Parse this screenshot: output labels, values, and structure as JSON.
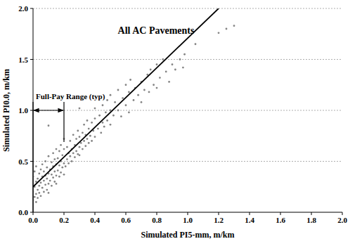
{
  "chart_data": {
    "type": "scatter",
    "title": "All AC Pavements",
    "x_label": "Simulated PI5-mm, m/km",
    "y_label": "Simulated PI0.0, m/km",
    "xlim": [
      0,
      2
    ],
    "ylim": [
      0,
      2
    ],
    "xticks": [
      {
        "value": 0,
        "label": "0.0"
      },
      {
        "value": 0.2,
        "label": "0.2"
      },
      {
        "value": 0.4,
        "label": "0.4"
      },
      {
        "value": 0.6,
        "label": "0.6"
      },
      {
        "value": 0.8,
        "label": "0.8"
      },
      {
        "value": 1,
        "label": "1.0"
      },
      {
        "value": 1.2,
        "label": "1.2"
      },
      {
        "value": 1.4,
        "label": "1.4"
      },
      {
        "value": 1.6,
        "label": "1.6"
      },
      {
        "value": 1.8,
        "label": "1.8"
      },
      {
        "value": 2,
        "label": "2.0"
      }
    ],
    "yticks": [
      {
        "value": 0,
        "label": "0.0"
      },
      {
        "value": 0.5,
        "label": "0.5"
      },
      {
        "value": 1,
        "label": "1.0"
      },
      {
        "value": 1.5,
        "label": "1.5"
      },
      {
        "value": 2,
        "label": "2.0"
      }
    ],
    "grid": true,
    "annotations": [
      {
        "text": "Full-Pay Range (typ)",
        "x": [
          0,
          0.2
        ],
        "y": 1.0
      }
    ],
    "series": [
      {
        "type": "scatter",
        "color": "#858585",
        "marker": "circle",
        "x": [
          0.0,
          0.0,
          0.0,
          0.0,
          0.01,
          0.01,
          0.01,
          0.02,
          0.02,
          0.02,
          0.02,
          0.03,
          0.03,
          0.03,
          0.04,
          0.04,
          0.04,
          0.05,
          0.05,
          0.05,
          0.06,
          0.06,
          0.06,
          0.07,
          0.07,
          0.07,
          0.08,
          0.08,
          0.08,
          0.09,
          0.09,
          0.09,
          0.1,
          0.1,
          0.1,
          0.1,
          0.11,
          0.11,
          0.12,
          0.12,
          0.12,
          0.13,
          0.13,
          0.13,
          0.14,
          0.14,
          0.14,
          0.15,
          0.15,
          0.15,
          0.15,
          0.16,
          0.16,
          0.17,
          0.17,
          0.17,
          0.18,
          0.18,
          0.18,
          0.19,
          0.19,
          0.2,
          0.2,
          0.2,
          0.2,
          0.21,
          0.22,
          0.22,
          0.23,
          0.23,
          0.24,
          0.24,
          0.25,
          0.25,
          0.26,
          0.26,
          0.27,
          0.27,
          0.28,
          0.28,
          0.29,
          0.29,
          0.3,
          0.3,
          0.3,
          0.31,
          0.32,
          0.32,
          0.33,
          0.33,
          0.34,
          0.34,
          0.35,
          0.35,
          0.36,
          0.36,
          0.37,
          0.38,
          0.38,
          0.39,
          0.4,
          0.4,
          0.4,
          0.42,
          0.43,
          0.44,
          0.45,
          0.45,
          0.46,
          0.47,
          0.48,
          0.48,
          0.5,
          0.5,
          0.5,
          0.52,
          0.53,
          0.55,
          0.55,
          0.57,
          0.58,
          0.6,
          0.6,
          0.62,
          0.62,
          0.63,
          0.65,
          0.66,
          0.68,
          0.7,
          0.7,
          0.72,
          0.74,
          0.75,
          0.76,
          0.78,
          0.8,
          0.8,
          0.82,
          0.84,
          0.86,
          0.88,
          0.9,
          0.92,
          0.95,
          0.97,
          0.98,
          1.05,
          1.2,
          1.25,
          1.3,
          0.1,
          0.3
        ],
        "values": [
          0.12,
          0.2,
          0.28,
          0.35,
          0.15,
          0.25,
          0.4,
          0.1,
          0.18,
          0.3,
          0.45,
          0.22,
          0.33,
          0.14,
          0.26,
          0.38,
          0.19,
          0.29,
          0.42,
          0.16,
          0.24,
          0.35,
          0.47,
          0.2,
          0.31,
          0.4,
          0.27,
          0.36,
          0.5,
          0.22,
          0.33,
          0.44,
          0.28,
          0.38,
          0.55,
          0.19,
          0.31,
          0.42,
          0.26,
          0.37,
          0.49,
          0.34,
          0.45,
          0.58,
          0.3,
          0.4,
          0.52,
          0.36,
          0.47,
          0.62,
          0.28,
          0.41,
          0.53,
          0.35,
          0.46,
          0.6,
          0.39,
          0.5,
          0.66,
          0.44,
          0.56,
          0.37,
          0.48,
          0.62,
          0.72,
          0.45,
          0.52,
          0.64,
          0.48,
          0.58,
          0.55,
          0.7,
          0.5,
          0.62,
          0.58,
          0.76,
          0.54,
          0.66,
          0.6,
          0.72,
          0.57,
          0.8,
          0.64,
          0.74,
          0.56,
          0.68,
          0.62,
          0.78,
          0.7,
          0.86,
          0.65,
          0.76,
          0.72,
          0.9,
          0.68,
          0.82,
          0.75,
          0.7,
          0.88,
          0.8,
          0.74,
          0.92,
          1.02,
          0.82,
          0.95,
          0.78,
          0.88,
          1.05,
          0.84,
          0.98,
          0.9,
          1.1,
          0.86,
          1.0,
          1.15,
          0.95,
          1.08,
          1.0,
          1.2,
          0.94,
          1.12,
          1.05,
          1.25,
          0.98,
          1.18,
          1.3,
          1.1,
          1.22,
          1.15,
          1.28,
          1.08,
          1.2,
          1.35,
          1.18,
          1.4,
          1.25,
          1.45,
          1.22,
          1.32,
          1.5,
          1.38,
          1.28,
          1.45,
          1.4,
          1.5,
          1.42,
          1.55,
          1.65,
          1.76,
          1.8,
          1.83,
          0.85,
          1.02
        ]
      },
      {
        "type": "line",
        "color": "#000000",
        "line_style": "solid",
        "x": [
          0,
          1.2
        ],
        "values": [
          0.25,
          2.0
        ]
      }
    ]
  }
}
